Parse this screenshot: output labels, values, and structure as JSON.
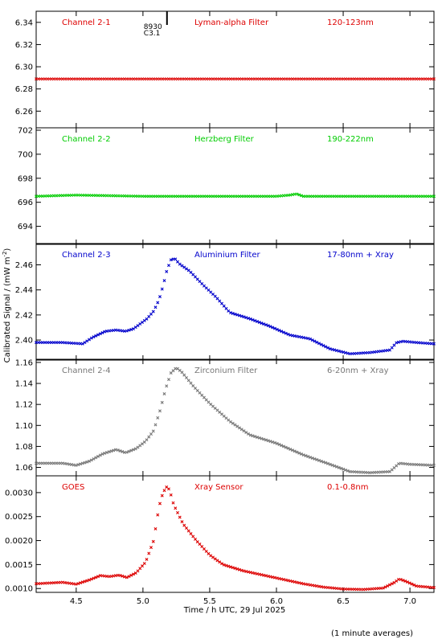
{
  "figure": {
    "ylabel": "Calibrated Signal / (mW m",
    "ylabel_sup": "-2",
    "ylabel_tail": ")",
    "xlabel": "Time / h UTC, 29 Jul 2025",
    "footnote": "(1 minute averages)",
    "xlim": [
      4.2,
      7.18
    ],
    "xticks": [
      "4.5",
      "5.0",
      "5.5",
      "6.0",
      "6.5",
      "7.0"
    ],
    "xtick_values": [
      4.5,
      5.0,
      5.5,
      6.0,
      6.5,
      7.0
    ],
    "flare_marker": {
      "x": 5.18,
      "label1": "8930",
      "label2": "C3.1"
    }
  },
  "chart_data": [
    {
      "type": "scatter",
      "name": "Channel 2-1",
      "filter": "Lyman-alpha Filter",
      "band": "120-123nm",
      "color": "#dd0000",
      "ylim": [
        6.245,
        6.35
      ],
      "yticks": [
        "6.26",
        "6.28",
        "6.30",
        "6.32",
        "6.34"
      ],
      "ytick_values": [
        6.26,
        6.28,
        6.3,
        6.32,
        6.34
      ],
      "x": [
        4.2,
        5.0,
        6.0,
        7.18
      ],
      "y": [
        6.289,
        6.289,
        6.289,
        6.289
      ]
    },
    {
      "type": "scatter",
      "name": "Channel 2-2",
      "filter": "Herzberg Filter",
      "band": "190-222nm",
      "color": "#00cc00",
      "ylim": [
        692.5,
        702.2
      ],
      "yticks": [
        "694",
        "696",
        "698",
        "700",
        "702"
      ],
      "ytick_values": [
        694,
        696,
        698,
        700,
        702
      ],
      "x": [
        4.2,
        4.5,
        5.0,
        5.5,
        6.0,
        6.1,
        6.15,
        6.2,
        6.5,
        7.18
      ],
      "y": [
        696.5,
        696.6,
        696.5,
        696.5,
        696.5,
        696.6,
        696.7,
        696.5,
        696.5,
        696.5
      ]
    },
    {
      "type": "scatter",
      "name": "Channel 2-3",
      "filter": "Aluminium Filter",
      "band": "17-80nm + Xray",
      "color": "#0000cc",
      "ylim": [
        2.384,
        2.477
      ],
      "yticks": [
        "2.40",
        "2.42",
        "2.44",
        "2.46"
      ],
      "ytick_values": [
        2.4,
        2.42,
        2.44,
        2.46
      ],
      "x": [
        4.2,
        4.4,
        4.55,
        4.62,
        4.72,
        4.8,
        4.87,
        4.93,
        4.98,
        5.03,
        5.08,
        5.12,
        5.15,
        5.18,
        5.21,
        5.24,
        5.27,
        5.35,
        5.45,
        5.55,
        5.65,
        5.8,
        5.95,
        6.1,
        6.25,
        6.4,
        6.55,
        6.7,
        6.85,
        6.9,
        6.95,
        7.05,
        7.18
      ],
      "y": [
        2.398,
        2.398,
        2.397,
        2.402,
        2.407,
        2.408,
        2.407,
        2.409,
        2.413,
        2.417,
        2.423,
        2.432,
        2.443,
        2.456,
        2.464,
        2.465,
        2.461,
        2.455,
        2.444,
        2.434,
        2.422,
        2.417,
        2.411,
        2.404,
        2.401,
        2.393,
        2.389,
        2.39,
        2.392,
        2.398,
        2.399,
        2.398,
        2.397
      ]
    },
    {
      "type": "scatter",
      "name": "Channel 2-4",
      "filter": "Zirconium Filter",
      "band": "6-20nm + Xray",
      "color": "#777777",
      "ylim": [
        1.052,
        1.163
      ],
      "yticks": [
        "1.06",
        "1.08",
        "1.10",
        "1.12",
        "1.14",
        "1.16"
      ],
      "ytick_values": [
        1.06,
        1.08,
        1.1,
        1.12,
        1.14,
        1.16
      ],
      "x": [
        4.2,
        4.4,
        4.5,
        4.6,
        4.7,
        4.8,
        4.87,
        4.95,
        5.02,
        5.08,
        5.13,
        5.17,
        5.21,
        5.25,
        5.29,
        5.38,
        5.5,
        5.65,
        5.8,
        6.0,
        6.2,
        6.4,
        6.55,
        6.7,
        6.85,
        6.92,
        7.0,
        7.18
      ],
      "y": [
        1.064,
        1.064,
        1.062,
        1.066,
        1.073,
        1.077,
        1.074,
        1.078,
        1.085,
        1.095,
        1.115,
        1.135,
        1.15,
        1.155,
        1.151,
        1.137,
        1.121,
        1.104,
        1.091,
        1.083,
        1.072,
        1.063,
        1.056,
        1.055,
        1.056,
        1.064,
        1.063,
        1.062
      ]
    },
    {
      "type": "scatter",
      "name": "GOES",
      "filter": "Xray Sensor",
      "band": "0.1-0.8nm",
      "color": "#dd0000",
      "ylim": [
        0.00092,
        0.00335
      ],
      "yticks": [
        "0.0010",
        "0.0015",
        "0.0020",
        "0.0025",
        "0.0030"
      ],
      "ytick_values": [
        0.001,
        0.0015,
        0.002,
        0.0025,
        0.003
      ],
      "x": [
        4.2,
        4.4,
        4.5,
        4.6,
        4.68,
        4.75,
        4.82,
        4.88,
        4.95,
        5.02,
        5.08,
        5.12,
        5.15,
        5.18,
        5.2,
        5.23,
        5.3,
        5.4,
        5.5,
        5.6,
        5.75,
        5.9,
        6.05,
        6.2,
        6.35,
        6.5,
        6.65,
        6.8,
        6.88,
        6.92,
        6.97,
        7.05,
        7.18
      ],
      "y": [
        0.0011,
        0.00113,
        0.00109,
        0.00118,
        0.00127,
        0.00125,
        0.00128,
        0.00123,
        0.00133,
        0.00155,
        0.002,
        0.0027,
        0.003,
        0.00313,
        0.00305,
        0.00275,
        0.00235,
        0.002,
        0.0017,
        0.0015,
        0.00137,
        0.00128,
        0.00119,
        0.0011,
        0.00103,
        0.00099,
        0.00098,
        0.00101,
        0.00112,
        0.0012,
        0.00115,
        0.00105,
        0.00102
      ]
    }
  ]
}
